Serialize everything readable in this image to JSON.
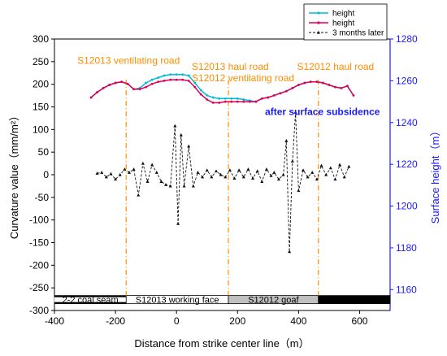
{
  "chart_data": {
    "type": "line",
    "xlabel": "Distance from strike center line（m）",
    "ylabel_left": "Curvature value（mm/m²）",
    "ylabel_right": "Surface height（m）",
    "xlim": [
      -400,
      700
    ],
    "ylim_left": [
      -300,
      300
    ],
    "ylim_right": [
      1150,
      1280
    ],
    "x_ticks": [
      "-400",
      "-200",
      "0",
      "200",
      "400",
      "600"
    ],
    "x_tick_values": [
      -400,
      -200,
      0,
      200,
      400,
      600
    ],
    "y_left_ticks": [
      "-300",
      "-250",
      "-200",
      "-150",
      "-100",
      "-50",
      "0",
      "50",
      "100",
      "150",
      "200",
      "250",
      "300"
    ],
    "y_left_tick_values": [
      -300,
      -250,
      -200,
      -150,
      -100,
      -50,
      0,
      50,
      100,
      150,
      200,
      250,
      300
    ],
    "y_right_ticks": [
      "1160",
      "1180",
      "1200",
      "1220",
      "1240",
      "1260",
      "1280"
    ],
    "y_right_tick_values": [
      1160,
      1180,
      1200,
      1220,
      1240,
      1260,
      1280
    ],
    "legend": {
      "position": "top-right",
      "entries": [
        "height",
        "height",
        "3 months later"
      ]
    },
    "series": [
      {
        "name": "height",
        "axis": "right",
        "color": "#00bcd4",
        "marker": "circle",
        "x": [
          -280,
          -260,
          -240,
          -220,
          -200,
          -180,
          -160,
          -140,
          -120,
          -100,
          -80,
          -60,
          -40,
          -20,
          0,
          20,
          40,
          60,
          80,
          100,
          120,
          140,
          160,
          180,
          200,
          220,
          240,
          260,
          280,
          300,
          320,
          340,
          360,
          380,
          400,
          420,
          440,
          460,
          480,
          500,
          520,
          540,
          560,
          580
        ],
        "values": [
          1252,
          1254.5,
          1256.5,
          1258,
          1259,
          1259.5,
          1258.5,
          1256,
          1256.5,
          1259,
          1260.5,
          1261.5,
          1262.5,
          1263,
          1263,
          1263,
          1262.5,
          1259,
          1255.5,
          1253,
          1252,
          1251.5,
          1251.5,
          1251.5,
          1251.5,
          1251,
          1250.5,
          1250,
          1251.5,
          1252,
          1253,
          1254,
          1255,
          1256.5,
          1258,
          1259,
          1259.5,
          1259.5,
          1259,
          1258,
          1257,
          1256.5,
          1257.5,
          1253
        ]
      },
      {
        "name": "height",
        "axis": "right",
        "color": "#e0005a",
        "marker": "circle",
        "x": [
          -280,
          -260,
          -240,
          -220,
          -200,
          -180,
          -160,
          -140,
          -120,
          -100,
          -80,
          -60,
          -40,
          -20,
          0,
          20,
          40,
          60,
          80,
          100,
          120,
          140,
          160,
          180,
          200,
          220,
          240,
          260,
          280,
          300,
          320,
          340,
          360,
          380,
          400,
          420,
          440,
          460,
          480,
          500,
          520,
          540,
          560,
          580
        ],
        "values": [
          1252,
          1254.5,
          1256.5,
          1258,
          1259,
          1259.5,
          1258.5,
          1256,
          1256,
          1257,
          1258.5,
          1259.5,
          1260,
          1260.5,
          1260.5,
          1260.5,
          1260,
          1257,
          1253.5,
          1251,
          1249.5,
          1249.5,
          1250,
          1250,
          1250,
          1250,
          1250,
          1250,
          1251.5,
          1252,
          1253,
          1254,
          1255,
          1256.5,
          1258,
          1259,
          1259.5,
          1259.5,
          1259,
          1258,
          1257,
          1256.5,
          1257.5,
          1253
        ]
      },
      {
        "name": "3 months later",
        "axis": "left",
        "color": "#111111",
        "marker": "triangle",
        "dashed": true,
        "x": [
          -260,
          -245,
          -230,
          -215,
          -200,
          -185,
          -170,
          -155,
          -140,
          -125,
          -110,
          -95,
          -80,
          -65,
          -50,
          -35,
          -20,
          -5,
          5,
          15,
          25,
          40,
          55,
          70,
          85,
          100,
          115,
          130,
          145,
          160,
          175,
          190,
          205,
          220,
          235,
          250,
          265,
          280,
          295,
          310,
          320,
          335,
          350,
          360,
          370,
          380,
          390,
          400,
          415,
          430,
          445,
          460,
          475,
          490,
          505,
          520,
          535,
          550,
          565
        ],
        "values": [
          3,
          5,
          -5,
          2,
          -10,
          0,
          12,
          5,
          12,
          -45,
          25,
          -15,
          22,
          5,
          -15,
          -22,
          -25,
          108,
          -108,
          88,
          -25,
          63,
          -25,
          5,
          -5,
          10,
          -5,
          8,
          0,
          -5,
          10,
          -8,
          10,
          -5,
          12,
          -8,
          8,
          -15,
          12,
          -2,
          5,
          -10,
          0,
          75,
          -170,
          30,
          138,
          -35,
          10,
          -5,
          5,
          -10,
          20,
          0,
          15,
          -10,
          22,
          -5,
          18
        ]
      }
    ],
    "vlines_x": [
      -165,
      170,
      465
    ],
    "annotations": [
      {
        "text": "S12013 ventilating road",
        "x": -325,
        "y": 245,
        "color": "#ff8c00"
      },
      {
        "text": "S12013 haul road",
        "x": 50,
        "y": 232,
        "color": "#ff8c00"
      },
      {
        "text": "S12012 ventilating road",
        "x": 50,
        "y": 207,
        "color": "#ff8c00"
      },
      {
        "text": "S12012 haul road",
        "x": 395,
        "y": 232,
        "color": "#ff8c00"
      },
      {
        "text": "after surface subsidence",
        "x": 290,
        "y": 132,
        "color": "#1a1aff"
      }
    ],
    "strip": {
      "y_range": [
        -285,
        -267
      ],
      "segments": [
        {
          "label": "2-2 coal seam",
          "from": -400,
          "to": -165,
          "fill": "#000000"
        },
        {
          "label": "S12013 working face",
          "from": -165,
          "to": 170,
          "fill": "#ffffff"
        },
        {
          "label": "S12012 goaf",
          "from": 170,
          "to": 465,
          "fill": "#c0c0c0"
        },
        {
          "label": "",
          "from": 465,
          "to": 700,
          "fill": "#000000"
        }
      ]
    }
  }
}
